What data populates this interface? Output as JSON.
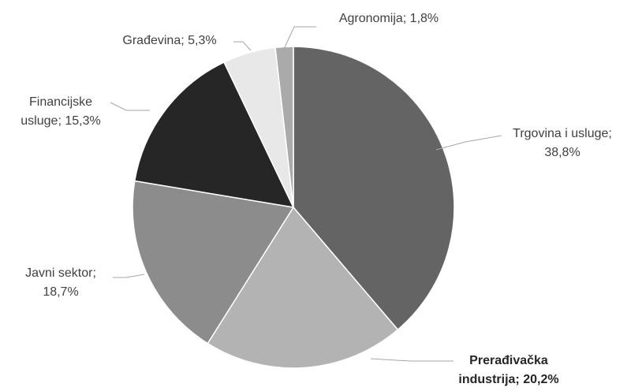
{
  "chart_data": {
    "type": "pie",
    "categories": [
      "Trgovina i usluge",
      "Prerađivačka industrija",
      "Javni sektor",
      "Financijske usluge",
      "Građevina",
      "Agronomija"
    ],
    "values": [
      38.8,
      20.2,
      18.7,
      15.3,
      5.3,
      1.8
    ],
    "value_labels": [
      "38,8%",
      "20,2%",
      "18,7%",
      "15,3%",
      "5,3%",
      "1,8%"
    ],
    "label_separator": "; ",
    "colors": [
      "#646464",
      "#b3b3b3",
      "#8c8c8c",
      "#262626",
      "#e8e8e8",
      "#aaaaaa"
    ]
  }
}
